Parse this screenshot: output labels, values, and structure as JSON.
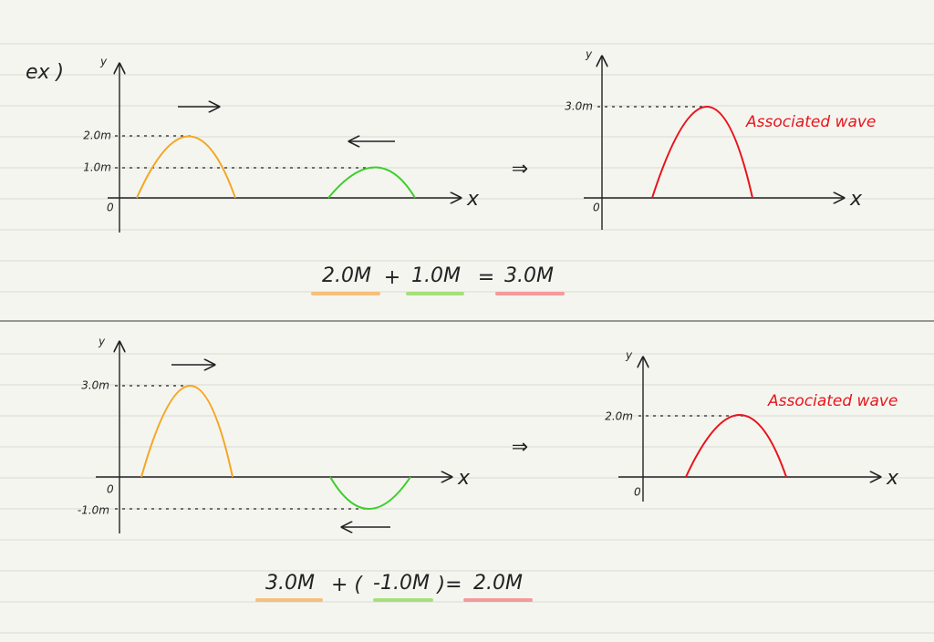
{
  "label": "ex )",
  "examples": [
    {
      "graphs": [
        {
          "y_axis": "y",
          "x_axis": "x",
          "origin": "0",
          "levels": [
            "2.0m",
            "1.0m"
          ]
        },
        {
          "y_axis": "y",
          "x_axis": "x",
          "origin": "0",
          "levels": [
            "3.0m"
          ],
          "caption": "Associated wave"
        }
      ],
      "equation": [
        "2.0M",
        "+",
        "1.0M",
        "=",
        "3.0M"
      ]
    },
    {
      "graphs": [
        {
          "y_axis": "y",
          "x_axis": "x",
          "origin": "0",
          "levels": [
            "3.0m",
            "-1.0m"
          ]
        },
        {
          "y_axis": "y",
          "x_axis": "x",
          "origin": "0",
          "levels": [
            "2.0m"
          ],
          "caption": "Associated wave"
        }
      ],
      "equation": [
        "3.0M",
        "+ (",
        "-1.0M",
        ")=",
        "2.0M"
      ]
    }
  ]
}
